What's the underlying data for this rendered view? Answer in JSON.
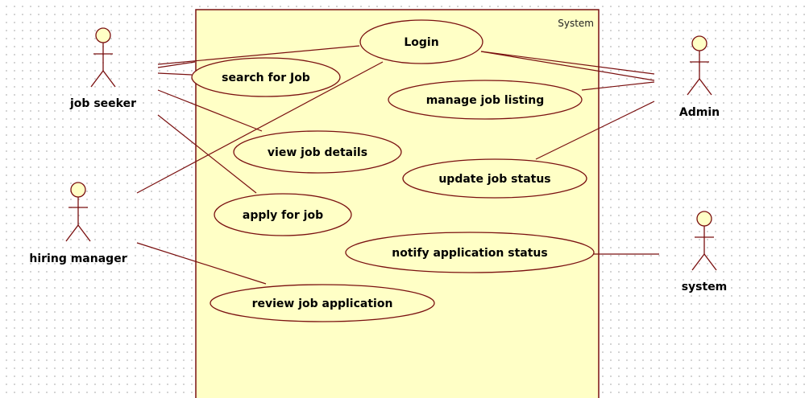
{
  "system": {
    "label": "System",
    "fill": "#ffffc6",
    "stroke": "#7a1010"
  },
  "actors": {
    "job_seeker": "job seeker",
    "hiring_manager": "hiring manager",
    "admin": "Admin",
    "system_actor": "system"
  },
  "use_cases": {
    "login": "Login",
    "search_for_job": "search for Job",
    "manage_job_listing": "manage job listing",
    "view_job_details": "view job details",
    "update_job_status": "update job status",
    "apply_for_job": "apply for job",
    "notify_application_status": "notify application status",
    "review_job_application": "review job application"
  }
}
